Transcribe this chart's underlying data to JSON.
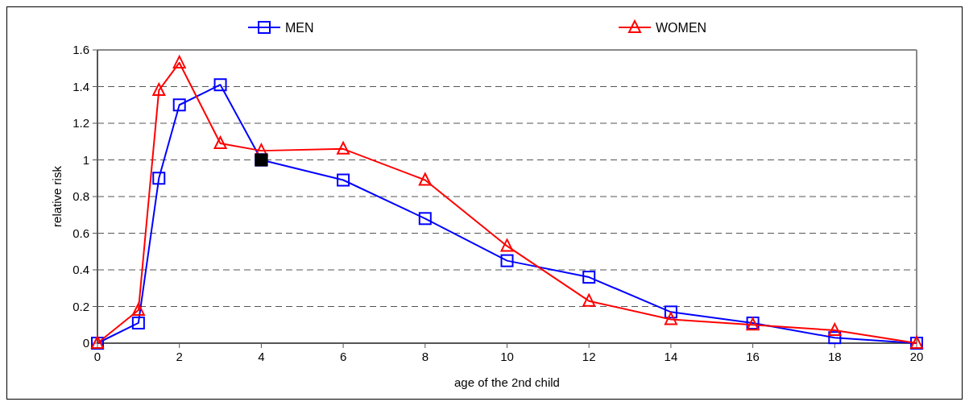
{
  "chart_data": {
    "type": "line",
    "xlabel": "age of the 2nd child",
    "ylabel": "relative risk",
    "xlim": [
      0,
      20
    ],
    "xticks": [
      0,
      2,
      4,
      6,
      8,
      10,
      12,
      14,
      16,
      18,
      20
    ],
    "ylim": [
      0,
      1.6
    ],
    "yticks": [
      0,
      0.2,
      0.4,
      0.6,
      0.8,
      1,
      1.2,
      1.4,
      1.6
    ],
    "grid": "y",
    "legend": "top",
    "line_style": "solid",
    "series": [
      {
        "name": "MEN",
        "color": "#0000ff",
        "marker": "square",
        "x": [
          0,
          1,
          1.5,
          2,
          3,
          4,
          6,
          8,
          10,
          12,
          14,
          16,
          18,
          20
        ],
        "values": [
          0,
          0.11,
          0.9,
          1.3,
          1.41,
          1.0,
          0.89,
          0.68,
          0.45,
          0.36,
          0.17,
          0.11,
          0.03,
          0
        ]
      },
      {
        "name": "WOMEN",
        "color": "#ff0000",
        "marker": "triangle",
        "x": [
          0,
          1,
          1.5,
          2,
          3,
          4,
          6,
          8,
          10,
          12,
          14,
          16,
          18,
          20
        ],
        "values": [
          0,
          0.18,
          1.38,
          1.53,
          1.09,
          1.05,
          1.06,
          0.89,
          0.53,
          0.23,
          0.13,
          0.1,
          0.07,
          0
        ]
      },
      {
        "type": "scatter",
        "color": "#000000",
        "marker": "square",
        "x": [
          4
        ],
        "values": [
          1
        ]
      }
    ]
  }
}
